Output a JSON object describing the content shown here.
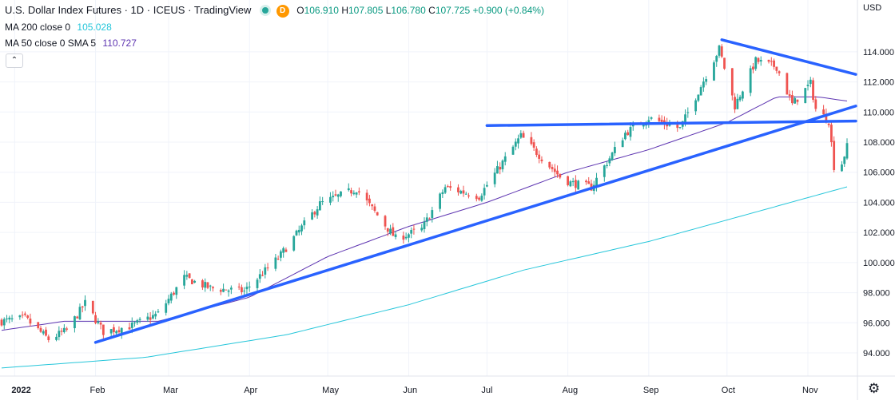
{
  "header": {
    "symbol": "U.S. Dollar Index Futures",
    "interval": "1D",
    "exchange": "ICEUS",
    "source": "TradingView",
    "badge": "D",
    "ohlc": {
      "o_label": "O",
      "o": "106.910",
      "h_label": "H",
      "h": "107.805",
      "l_label": "L",
      "l": "106.780",
      "c_label": "C",
      "c": "107.725",
      "change": "+0.900 (+0.84%)"
    }
  },
  "indicators": [
    {
      "label": "MA 200 close 0",
      "value": "105.028",
      "color": "#26c6da"
    },
    {
      "label": "MA 50 close 0 SMA 5",
      "value": "110.727",
      "color": "#5e35b1"
    }
  ],
  "collapse_icon": "chevron-up-icon",
  "axis_currency": "USD",
  "settings_icon": "gear-icon",
  "colors": {
    "up": "#26a69a",
    "down": "#ef5350",
    "trendline": "#2962ff",
    "grid": "#f0f3fa"
  },
  "chart_data": {
    "type": "candlestick",
    "x": {
      "start": "2021-12-27",
      "end": "2022-11-16",
      "tick_labels": [
        "2022",
        "Feb",
        "Mar",
        "Apr",
        "May",
        "Jun",
        "Jul",
        "Aug",
        "Sep",
        "Oct",
        "Nov"
      ],
      "tick_dates": [
        "2022-01-01",
        "2022-02-01",
        "2022-03-01",
        "2022-04-01",
        "2022-05-01",
        "2022-06-01",
        "2022-07-01",
        "2022-08-01",
        "2022-09-01",
        "2022-10-01",
        "2022-11-01"
      ]
    },
    "ylim": [
      92.8,
      116.2
    ],
    "y_ticks": [
      "94.000",
      "96.000",
      "98.000",
      "100.000",
      "102.000",
      "104.000",
      "106.000",
      "108.000",
      "110.000",
      "112.000",
      "114.000"
    ],
    "price_anchors": [
      [
        "2021-12-27",
        96.1
      ],
      [
        "2022-01-05",
        96.3
      ],
      [
        "2022-01-14",
        94.9
      ],
      [
        "2022-01-21",
        95.5
      ],
      [
        "2022-01-28",
        97.3
      ],
      [
        "2022-02-04",
        95.4
      ],
      [
        "2022-02-15",
        95.8
      ],
      [
        "2022-02-25",
        96.6
      ],
      [
        "2022-03-07",
        99.0
      ],
      [
        "2022-03-17",
        98.3
      ],
      [
        "2022-03-30",
        98.1
      ],
      [
        "2022-04-12",
        100.3
      ],
      [
        "2022-04-28",
        103.9
      ],
      [
        "2022-05-12",
        104.9
      ],
      [
        "2022-05-27",
        101.6
      ],
      [
        "2022-06-06",
        102.2
      ],
      [
        "2022-06-15",
        105.0
      ],
      [
        "2022-06-28",
        104.4
      ],
      [
        "2022-07-14",
        108.4
      ],
      [
        "2022-07-29",
        105.7
      ],
      [
        "2022-08-02",
        105.3
      ],
      [
        "2022-08-10",
        105.0
      ],
      [
        "2022-08-23",
        108.6
      ],
      [
        "2022-09-01",
        109.6
      ],
      [
        "2022-09-13",
        108.9
      ],
      [
        "2022-09-28",
        114.2
      ],
      [
        "2022-10-04",
        110.4
      ],
      [
        "2022-10-12",
        113.4
      ],
      [
        "2022-10-20",
        113.0
      ],
      [
        "2022-10-26",
        110.5
      ],
      [
        "2022-11-02",
        111.9
      ],
      [
        "2022-11-04",
        110.2
      ],
      [
        "2022-11-09",
        109.4
      ],
      [
        "2022-11-11",
        106.4
      ],
      [
        "2022-11-14",
        106.6
      ],
      [
        "2022-11-16",
        107.7
      ]
    ],
    "series": [
      {
        "name": "MA 200 close 0",
        "type": "line",
        "points": [
          [
            "2021-12-27",
            93.0
          ],
          [
            "2022-02-20",
            93.7
          ],
          [
            "2022-04-15",
            95.2
          ],
          [
            "2022-06-01",
            97.2
          ],
          [
            "2022-07-15",
            99.5
          ],
          [
            "2022-09-01",
            101.4
          ],
          [
            "2022-10-15",
            103.5
          ],
          [
            "2022-11-16",
            105.03
          ]
        ]
      },
      {
        "name": "MA 50 close 0 SMA 5",
        "type": "line",
        "points": [
          [
            "2021-12-27",
            95.5
          ],
          [
            "2022-01-20",
            96.1
          ],
          [
            "2022-02-25",
            96.1
          ],
          [
            "2022-04-01",
            97.7
          ],
          [
            "2022-05-01",
            100.4
          ],
          [
            "2022-06-01",
            102.4
          ],
          [
            "2022-07-01",
            104.0
          ],
          [
            "2022-08-01",
            106.0
          ],
          [
            "2022-09-01",
            107.5
          ],
          [
            "2022-10-01",
            109.3
          ],
          [
            "2022-10-20",
            111.0
          ],
          [
            "2022-11-05",
            111.0
          ],
          [
            "2022-11-16",
            110.73
          ]
        ]
      }
    ],
    "trendlines": [
      {
        "from": [
          "2022-02-01",
          94.7
        ],
        "to": [
          "2022-11-30",
          110.4
        ]
      },
      {
        "from": [
          "2022-07-01",
          109.1
        ],
        "to": [
          "2022-11-30",
          109.4
        ]
      },
      {
        "from": [
          "2022-09-29",
          114.8
        ],
        "to": [
          "2022-11-30",
          112.5
        ]
      }
    ],
    "grid": true,
    "legend": "top-left"
  }
}
